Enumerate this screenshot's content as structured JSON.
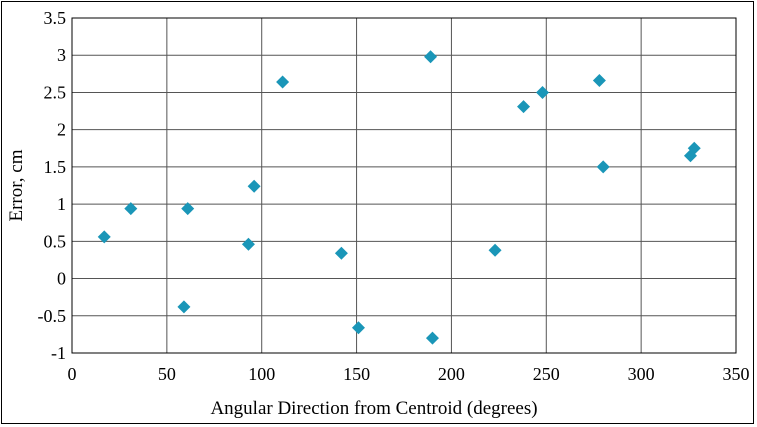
{
  "chart_data": {
    "type": "scatter",
    "title": "",
    "xlabel": "Angular Direction from Centroid (degrees)",
    "ylabel": "Error, cm",
    "xlim": [
      0,
      350
    ],
    "ylim": [
      -1,
      3.5
    ],
    "xticks": [
      "0",
      "50",
      "100",
      "150",
      "200",
      "250",
      "300",
      "350"
    ],
    "yticks": [
      "-1",
      "-0.5",
      "0",
      "0.5",
      "1",
      "1.5",
      "2",
      "2.5",
      "3",
      "3.5"
    ],
    "grid": true,
    "marker": "diamond",
    "marker_color": "#1a96b8",
    "points": [
      {
        "x": 17,
        "y": 0.56
      },
      {
        "x": 31,
        "y": 0.94
      },
      {
        "x": 59,
        "y": -0.38
      },
      {
        "x": 61,
        "y": 0.94
      },
      {
        "x": 93,
        "y": 0.46
      },
      {
        "x": 96,
        "y": 1.24
      },
      {
        "x": 111,
        "y": 2.64
      },
      {
        "x": 142,
        "y": 0.34
      },
      {
        "x": 151,
        "y": -0.66
      },
      {
        "x": 189,
        "y": 2.98
      },
      {
        "x": 190,
        "y": -0.8
      },
      {
        "x": 223,
        "y": 0.38
      },
      {
        "x": 238,
        "y": 2.31
      },
      {
        "x": 248,
        "y": 2.5
      },
      {
        "x": 278,
        "y": 2.66
      },
      {
        "x": 280,
        "y": 1.5
      },
      {
        "x": 326,
        "y": 1.65
      },
      {
        "x": 328,
        "y": 1.75
      }
    ]
  }
}
